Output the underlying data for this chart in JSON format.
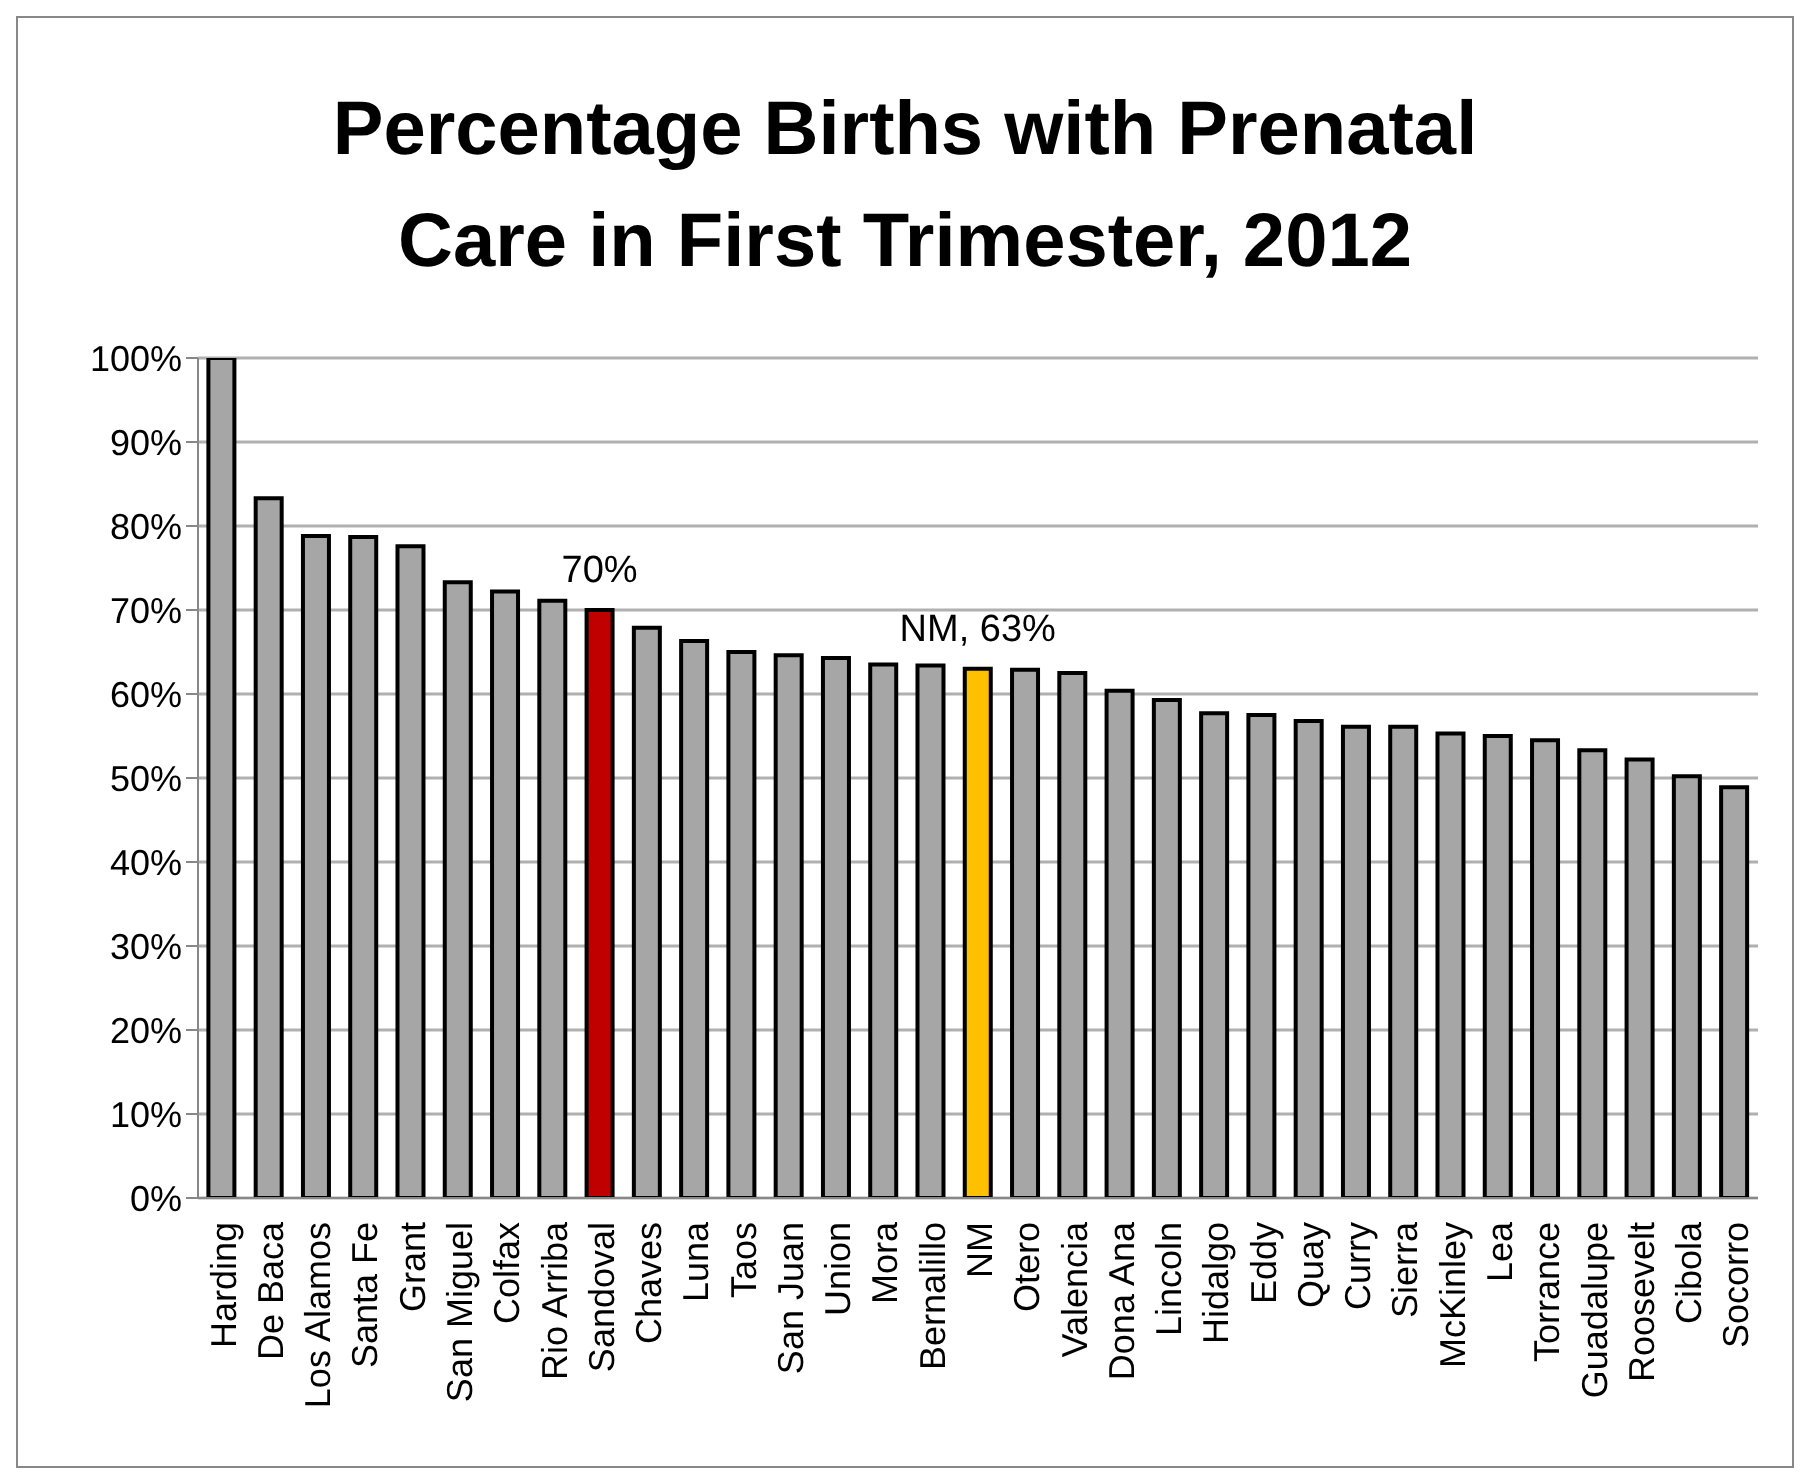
{
  "chart_data": {
    "type": "bar",
    "title": "Percentage Births with Prenatal Care in First Trimester, 2012",
    "categories": [
      "Harding",
      "De Baca",
      "Los Alamos",
      "Santa Fe",
      "Grant",
      "San Miguel",
      "Colfax",
      "Rio Arriba",
      "Sandoval",
      "Chaves",
      "Luna",
      "Taos",
      "San Juan",
      "Union",
      "Mora",
      "Bernalillo",
      "NM",
      "Otero",
      "Valencia",
      "Dona Ana",
      "Lincoln",
      "Hidalgo",
      "Eddy",
      "Quay",
      "Curry",
      "Sierra",
      "McKinley",
      "Lea",
      "Torrance",
      "Guadalupe",
      "Roosevelt",
      "Cibola",
      "Socorro"
    ],
    "values": [
      100,
      83.3,
      78.8,
      78.7,
      77.6,
      73.3,
      72.2,
      71.1,
      70,
      67.9,
      66.3,
      65,
      64.6,
      64.3,
      63.5,
      63.4,
      63,
      62.9,
      62.5,
      60.4,
      59.3,
      57.7,
      57.5,
      56.8,
      56.1,
      56.1,
      55.3,
      55,
      54.5,
      53.3,
      52.2,
      50.2,
      48.9
    ],
    "colors": [
      "#a6a6a6",
      "#a6a6a6",
      "#a6a6a6",
      "#a6a6a6",
      "#a6a6a6",
      "#a6a6a6",
      "#a6a6a6",
      "#a6a6a6",
      "#c00000",
      "#a6a6a6",
      "#a6a6a6",
      "#a6a6a6",
      "#a6a6a6",
      "#a6a6a6",
      "#a6a6a6",
      "#a6a6a6",
      "#ffc000",
      "#a6a6a6",
      "#a6a6a6",
      "#a6a6a6",
      "#a6a6a6",
      "#a6a6a6",
      "#a6a6a6",
      "#a6a6a6",
      "#a6a6a6",
      "#a6a6a6",
      "#a6a6a6",
      "#a6a6a6",
      "#a6a6a6",
      "#a6a6a6",
      "#a6a6a6",
      "#a6a6a6",
      "#a6a6a6"
    ],
    "ylim": [
      0,
      100
    ],
    "yticks": [
      {
        "value": 0,
        "label": "0%"
      },
      {
        "value": 10,
        "label": "10%"
      },
      {
        "value": 20,
        "label": "20%"
      },
      {
        "value": 30,
        "label": "30%"
      },
      {
        "value": 40,
        "label": "40%"
      },
      {
        "value": 50,
        "label": "50%"
      },
      {
        "value": 60,
        "label": "60%"
      },
      {
        "value": 70,
        "label": "70%"
      },
      {
        "value": 80,
        "label": "80%"
      },
      {
        "value": 90,
        "label": "90%"
      },
      {
        "value": 100,
        "label": "100%"
      }
    ],
    "grid": "y",
    "annotations": [
      {
        "text": "70%",
        "x": "Sandoval",
        "y": 70
      },
      {
        "text": "NM, 63%",
        "x": "NM",
        "y": 63
      }
    ]
  }
}
